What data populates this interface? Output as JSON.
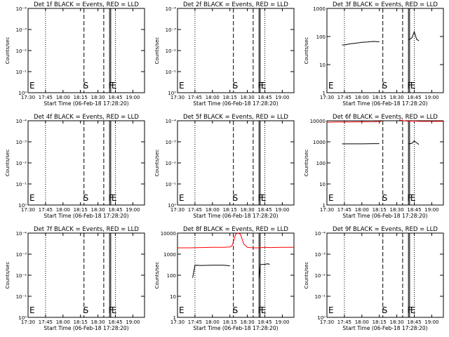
{
  "window": {
    "background": "#ffffff"
  },
  "shared": {
    "xlabel": "Start Time (06-Feb-18 17:28:20)",
    "ylabel": "Counts/sec",
    "x_ticks": [
      "17:30",
      "17:45",
      "18:00",
      "18:15",
      "18:30",
      "18:45",
      "19:00"
    ],
    "x_tick_minutes": [
      0,
      15,
      30,
      45,
      60,
      75,
      90
    ],
    "marker_labels": {
      "S": "S",
      "F": "F",
      "E": "E"
    },
    "colors": {
      "events": "#000000",
      "lld": "#ff0000"
    }
  },
  "chart_data": [
    {
      "type": "line",
      "title": "Det 1f BLACK = Events, RED = LLD",
      "scale": "log",
      "ylim": [
        1,
        0.0001
      ],
      "yticks": [
        {
          "v": 1,
          "t": "10⁰"
        },
        {
          "v": 0.1,
          "t": "10⁻¹"
        },
        {
          "v": 0.01,
          "t": "10⁻²"
        },
        {
          "v": 0.001,
          "t": "10⁻³"
        },
        {
          "v": 0.0001,
          "t": "10⁻⁴"
        }
      ],
      "series": []
    },
    {
      "type": "line",
      "title": "Det 2f BLACK = Events, RED = LLD",
      "scale": "log",
      "ylim": [
        1,
        0.0001
      ],
      "yticks": [
        {
          "v": 1,
          "t": "10⁰"
        },
        {
          "v": 0.1,
          "t": "10⁻¹"
        },
        {
          "v": 0.01,
          "t": "10⁻²"
        },
        {
          "v": 0.001,
          "t": "10⁻³"
        },
        {
          "v": 0.0001,
          "t": "10⁻⁴"
        }
      ],
      "series": []
    },
    {
      "type": "line",
      "title": "Det 3f BLACK = Events, RED = LLD",
      "scale": "log",
      "ylim": [
        1,
        1000
      ],
      "yticks": [
        {
          "v": 1,
          "t": "1"
        },
        {
          "v": 10,
          "t": "10"
        },
        {
          "v": 100,
          "t": "100"
        },
        {
          "v": 1000,
          "t": "1000"
        }
      ],
      "series": [
        {
          "color": "black",
          "segments": [
            {
              "x": [
                13,
                15,
                20,
                25,
                30,
                35,
                40,
                45
              ],
              "y": [
                50,
                50,
                55,
                58,
                62,
                64,
                67,
                65
              ]
            },
            {
              "x": [
                70,
                73,
                75,
                77,
                79
              ],
              "y": [
                75,
                90,
                150,
                80,
                70
              ]
            }
          ]
        }
      ]
    },
    {
      "type": "line",
      "title": "Det 4f BLACK = Events, RED = LLD",
      "scale": "log",
      "ylim": [
        1,
        0.0001
      ],
      "yticks": [
        {
          "v": 1,
          "t": "10⁰"
        },
        {
          "v": 0.1,
          "t": "10⁻¹"
        },
        {
          "v": 0.01,
          "t": "10⁻²"
        },
        {
          "v": 0.001,
          "t": "10⁻³"
        },
        {
          "v": 0.0001,
          "t": "10⁻⁴"
        }
      ],
      "series": []
    },
    {
      "type": "line",
      "title": "Det 5f BLACK = Events, RED = LLD",
      "scale": "log",
      "ylim": [
        1,
        0.0001
      ],
      "yticks": [
        {
          "v": 1,
          "t": "10⁰"
        },
        {
          "v": 0.1,
          "t": "10⁻¹"
        },
        {
          "v": 0.01,
          "t": "10⁻²"
        },
        {
          "v": 0.001,
          "t": "10⁻³"
        },
        {
          "v": 0.0001,
          "t": "10⁻⁴"
        }
      ],
      "series": []
    },
    {
      "type": "line",
      "title": "Det 6f BLACK = Events, RED = LLD",
      "scale": "log",
      "ylim": [
        1,
        10000
      ],
      "yticks": [
        {
          "v": 1,
          "t": "1"
        },
        {
          "v": 10,
          "t": "10"
        },
        {
          "v": 100,
          "t": "100"
        },
        {
          "v": 1000,
          "t": "1000"
        },
        {
          "v": 10000,
          "t": "10000"
        }
      ],
      "series": [
        {
          "color": "red",
          "segments": [
            {
              "x": [
                0,
                10,
                20,
                30,
                40,
                45,
                47
              ],
              "y": [
                8500,
                8700,
                8800,
                8900,
                9000,
                9200,
                9500
              ]
            },
            {
              "x": [
                62,
                66,
                70,
                73,
                75,
                78,
                80,
                90,
                100
              ],
              "y": [
                11000,
                10000,
                9500,
                9600,
                9800,
                9400,
                9300,
                9300,
                9300
              ]
            }
          ]
        },
        {
          "color": "black",
          "segments": [
            {
              "x": [
                13,
                20,
                30,
                40,
                45
              ],
              "y": [
                800,
                800,
                800,
                820,
                820
              ]
            },
            {
              "x": [
                70,
                73,
                75,
                77,
                79
              ],
              "y": [
                800,
                850,
                1100,
                900,
                750
              ]
            }
          ]
        }
      ]
    },
    {
      "type": "line",
      "title": "Det 7f BLACK = Events, RED = LLD",
      "scale": "log",
      "ylim": [
        1,
        0.0001
      ],
      "yticks": [
        {
          "v": 1,
          "t": "10⁰"
        },
        {
          "v": 0.1,
          "t": "10⁻¹"
        },
        {
          "v": 0.01,
          "t": "10⁻²"
        },
        {
          "v": 0.001,
          "t": "10⁻³"
        },
        {
          "v": 0.0001,
          "t": "10⁻⁴"
        }
      ],
      "series": []
    },
    {
      "type": "line",
      "title": "Det 8f BLACK = Events, RED = LLD",
      "scale": "log",
      "ylim": [
        1,
        10000
      ],
      "yticks": [
        {
          "v": 1,
          "t": "1"
        },
        {
          "v": 10,
          "t": "10"
        },
        {
          "v": 100,
          "t": "100"
        },
        {
          "v": 1000,
          "t": "1000"
        },
        {
          "v": 10000,
          "t": "10000"
        }
      ],
      "series": [
        {
          "color": "red",
          "segments": [
            {
              "x": [
                0,
                10,
                20,
                30,
                40,
                45,
                47,
                50,
                52,
                54,
                57,
                60,
                62,
                66,
                70,
                75,
                80,
                90,
                100
              ],
              "y": [
                2000,
                2000,
                2050,
                2100,
                2100,
                2200,
                2600,
                9000,
                10000,
                9000,
                3000,
                2100,
                2050,
                2000,
                2000,
                2100,
                2050,
                2100,
                2100
              ]
            }
          ]
        },
        {
          "color": "black",
          "segments": [
            {
              "x": [
                13,
                15,
                20,
                30,
                40,
                45
              ],
              "y": [
                75,
                300,
                290,
                300,
                300,
                280
              ]
            },
            {
              "x": [
                70,
                71,
                75,
                78,
                79
              ],
              "y": [
                70,
                320,
                330,
                350,
                320
              ]
            }
          ]
        }
      ]
    },
    {
      "type": "line",
      "title": "Det 9f BLACK = Events, RED = LLD",
      "scale": "log",
      "ylim": [
        1,
        0.0001
      ],
      "yticks": [
        {
          "v": 1,
          "t": "10⁰"
        },
        {
          "v": 0.1,
          "t": "10⁻¹"
        },
        {
          "v": 0.01,
          "t": "10⁻²"
        },
        {
          "v": 0.001,
          "t": "10⁻³"
        },
        {
          "v": 0.0001,
          "t": "10⁻⁴"
        }
      ],
      "series": []
    }
  ]
}
